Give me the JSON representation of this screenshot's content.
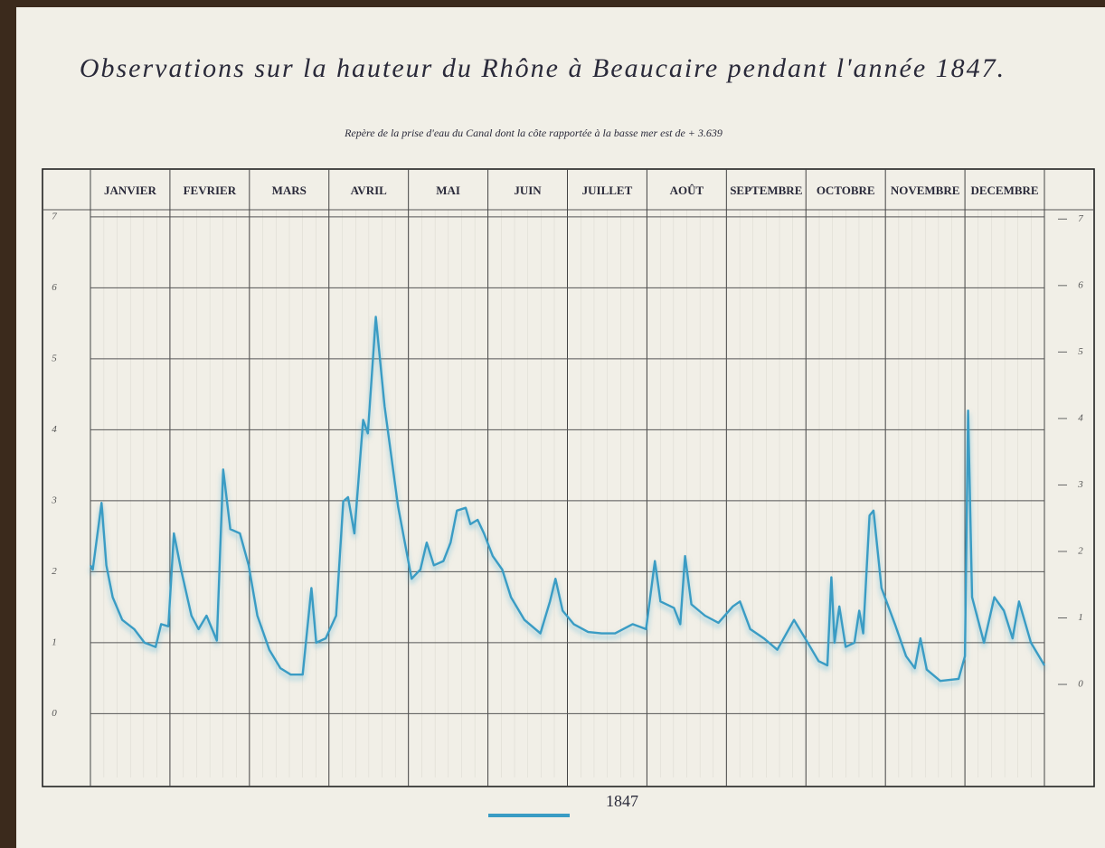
{
  "chart_data": {
    "type": "line",
    "title": "Observations sur la hauteur du Rhône à Beaucaire pendant l'année 1847.",
    "subtitle": "Repère de la prise d'eau du Canal dont la côte rapportée à la basse mer est de + 3.639",
    "categories": [
      "JANVIER",
      "FEVRIER",
      "MARS",
      "AVRIL",
      "MAI",
      "JUIN",
      "JUILLET",
      "AOÛT",
      "SEPTEMBRE",
      "OCTOBRE",
      "NOVEMBRE",
      "DECEMBRE"
    ],
    "x": [
      0,
      0.03,
      0.14,
      0.2,
      0.28,
      0.4,
      0.55,
      0.68,
      0.82,
      0.89,
      0.98,
      1.05,
      1.14,
      1.27,
      1.36,
      1.46,
      1.59,
      1.67,
      1.76,
      1.88,
      1.99,
      2.1,
      2.25,
      2.39,
      2.52,
      2.67,
      2.78,
      2.84,
      2.96,
      3.09,
      3.18,
      3.24,
      3.32,
      3.43,
      3.49,
      3.59,
      3.7,
      3.87,
      4.04,
      4.15,
      4.23,
      4.32,
      4.44,
      4.53,
      4.61,
      4.72,
      4.78,
      4.87,
      4.95,
      5.06,
      5.18,
      5.29,
      5.46,
      5.66,
      5.78,
      5.85,
      5.94,
      6.08,
      6.26,
      6.43,
      6.6,
      6.82,
      6.99,
      7.1,
      7.17,
      7.34,
      7.42,
      7.48,
      7.56,
      7.73,
      7.9,
      8.08,
      8.17,
      8.3,
      8.47,
      8.64,
      8.85,
      8.99,
      9.16,
      9.27,
      9.32,
      9.36,
      9.42,
      9.5,
      9.61,
      9.67,
      9.72,
      9.8,
      9.85,
      9.95,
      10.12,
      10.26,
      10.37,
      10.44,
      10.52,
      10.69,
      10.92,
      11.0,
      11.04,
      11.09,
      11.24,
      11.37,
      11.49,
      11.6,
      11.68,
      11.83,
      12.0
    ],
    "series": [
      {
        "name": "1847",
        "color": "#3a9cc4",
        "values": [
          2.09,
          2.03,
          2.97,
          2.09,
          1.64,
          1.32,
          1.19,
          1.0,
          0.94,
          1.26,
          1.23,
          2.54,
          2.03,
          1.38,
          1.19,
          1.38,
          1.03,
          3.44,
          2.6,
          2.54,
          2.09,
          1.38,
          0.9,
          0.64,
          0.55,
          0.55,
          1.77,
          1.0,
          1.06,
          1.38,
          2.99,
          3.05,
          2.54,
          4.14,
          3.95,
          5.59,
          4.33,
          2.92,
          1.9,
          2.03,
          2.41,
          2.09,
          2.15,
          2.41,
          2.86,
          2.9,
          2.67,
          2.73,
          2.54,
          2.22,
          2.03,
          1.64,
          1.32,
          1.13,
          1.58,
          1.9,
          1.45,
          1.26,
          1.15,
          1.13,
          1.13,
          1.26,
          1.19,
          2.15,
          1.58,
          1.49,
          1.26,
          2.22,
          1.54,
          1.38,
          1.28,
          1.51,
          1.58,
          1.19,
          1.06,
          0.9,
          1.32,
          1.06,
          0.74,
          0.68,
          1.92,
          1.0,
          1.51,
          0.94,
          1.0,
          1.45,
          1.13,
          2.79,
          2.86,
          1.77,
          1.26,
          0.81,
          0.64,
          1.06,
          0.62,
          0.46,
          0.49,
          0.81,
          4.27,
          1.64,
          1.0,
          1.64,
          1.45,
          1.06,
          1.58,
          1.0,
          0.68
        ]
      }
    ],
    "xlim": [
      0,
      12
    ],
    "ylim": [
      -0.9,
      7.1
    ],
    "yticks": [
      0,
      1,
      2,
      3,
      4,
      5,
      6,
      7
    ],
    "y2lim": [
      -1.4,
      7.14
    ],
    "y2ticks": [
      0,
      1,
      2,
      3,
      4,
      5,
      6,
      7
    ],
    "grid": true,
    "legend": "bottom"
  }
}
